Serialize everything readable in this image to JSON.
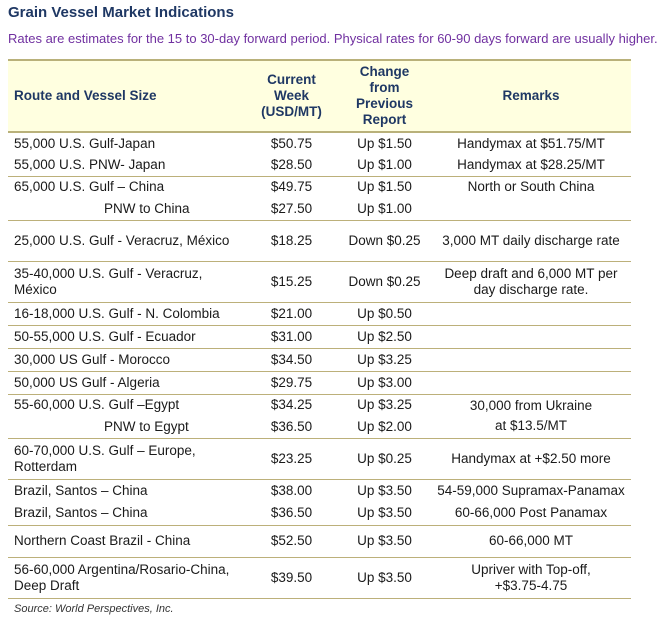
{
  "title": "Grain Vessel Market Indications",
  "subtitle": "Rates are estimates for the 15 to 30-day forward period. Physical rates for 60-90 days forward are usually higher.",
  "headers": {
    "route": "Route and Vessel Size",
    "current_week": "Current Week (USD/MT)",
    "change": "Change from Previous Report",
    "remarks": "Remarks"
  },
  "rows": [
    {
      "route": "55,000 U.S. Gulf-Japan",
      "rate": "$50.75",
      "change": "Up $1.50",
      "remarks": "Handymax at $51.75/MT"
    },
    {
      "route": "55,000 U.S. PNW- Japan",
      "rate": "$28.50",
      "change": "Up $1.00",
      "remarks": "Handymax at $28.25/MT"
    },
    {
      "route": "65,000 U.S. Gulf – China",
      "rate": "$49.75",
      "change": "Up $1.50",
      "remarks": "North or South China"
    },
    {
      "route": "PNW to China",
      "rate": "$27.50",
      "change": "Up $1.00",
      "remarks": ""
    },
    {
      "route": "25,000 U.S. Gulf - Veracruz, México",
      "rate": "$18.25",
      "change": "Down $0.25",
      "remarks": "3,000 MT daily discharge rate"
    },
    {
      "route": "35-40,000 U.S. Gulf - Veracruz, México",
      "rate": "$15.25",
      "change": "Down $0.25",
      "remarks": "Deep draft and 6,000 MT per day discharge rate."
    },
    {
      "route": "16-18,000 U.S. Gulf - N. Colombia",
      "rate": "$21.00",
      "change": "Up $0.50",
      "remarks": ""
    },
    {
      "route": "50-55,000 U.S. Gulf - Ecuador",
      "rate": "$31.00",
      "change": "Up $2.50",
      "remarks": ""
    },
    {
      "route": "30,000 US Gulf - Morocco",
      "rate": "$34.50",
      "change": "Up $3.25",
      "remarks": ""
    },
    {
      "route": "50,000 US Gulf - Algeria",
      "rate": "$29.75",
      "change": "Up $3.00",
      "remarks": ""
    },
    {
      "route": "55-60,000 U.S. Gulf –Egypt",
      "rate": "$34.25",
      "change": "Up $3.25",
      "remarks": "30,000 from Ukraine at $13.5/MT"
    },
    {
      "route": "PNW to Egypt",
      "rate": "$36.50",
      "change": "Up $2.00",
      "remarks": ""
    },
    {
      "route": "60-70,000 U.S. Gulf – Europe, Rotterdam",
      "rate": "$23.25",
      "change": "Up $0.25",
      "remarks": "Handymax at +$2.50 more"
    },
    {
      "route": "Brazil, Santos – China",
      "rate": "$38.00",
      "change": "Up $3.50",
      "remarks": "54-59,000 Supramax-Panamax"
    },
    {
      "route": "Brazil, Santos – China",
      "rate": "$36.50",
      "change": "Up $3.50",
      "remarks": "60-66,000 Post Panamax"
    },
    {
      "route": "Northern Coast Brazil - China",
      "rate": "$52.50",
      "change": "Up $3.50",
      "remarks": "60-66,000 MT"
    },
    {
      "route": "56-60,000 Argentina/Rosario-China, Deep Draft",
      "rate": "$39.50",
      "change": "Up $3.50",
      "remarks": "Upriver with Top-off, +$3.75-4.75"
    }
  ],
  "source": "Source: World Perspectives, Inc."
}
